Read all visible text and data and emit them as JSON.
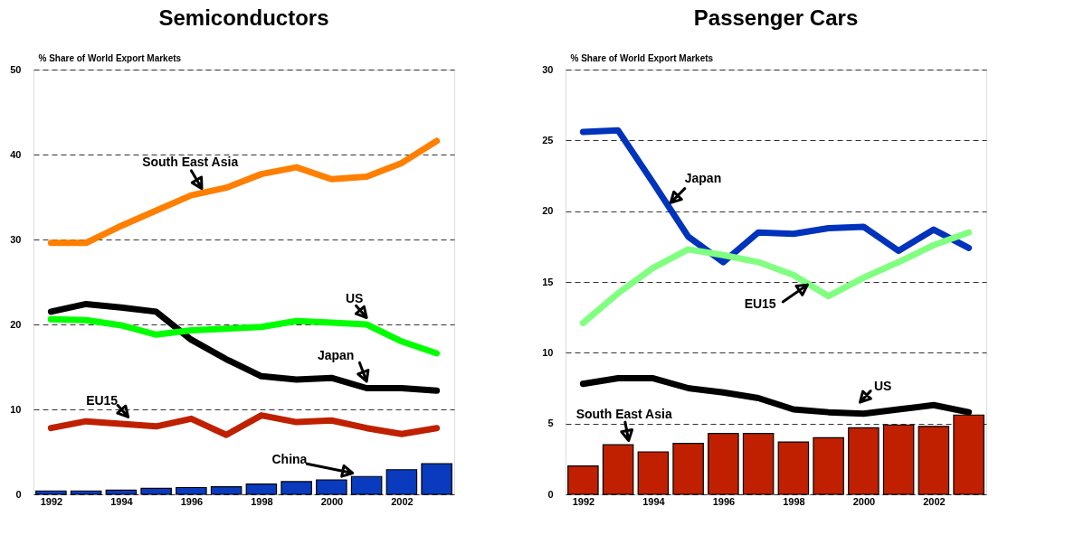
{
  "chart_data": [
    {
      "type": "line",
      "title": "Semiconductors",
      "ylabel": "% Share of World Export Markets",
      "categories": [
        "1992",
        null,
        "1994",
        null,
        "1996",
        null,
        "1998",
        null,
        "2000",
        null,
        "2002",
        null
      ],
      "series": [
        {
          "name": "South East Asia",
          "color": "#ff7f00",
          "values": [
            29.6,
            29.6,
            31.6,
            33.4,
            35.2,
            36.1,
            37.7,
            38.5,
            37.1,
            37.4,
            39.0,
            41.6
          ]
        },
        {
          "name": "Japan",
          "color": "#000000",
          "values": [
            21.5,
            22.4,
            22.0,
            21.5,
            18.2,
            15.9,
            13.9,
            13.5,
            13.7,
            12.5,
            12.5,
            12.2
          ]
        },
        {
          "name": "US",
          "color": "#00ff00",
          "values": [
            20.6,
            20.5,
            19.9,
            18.8,
            19.3,
            19.5,
            19.7,
            20.4,
            20.2,
            20.0,
            18.0,
            16.6
          ]
        },
        {
          "name": "EU15",
          "color": "#bf2000",
          "values": [
            7.8,
            8.6,
            8.3,
            8.0,
            8.9,
            7.0,
            9.3,
            8.5,
            8.7,
            7.8,
            7.1,
            7.8
          ]
        },
        {
          "name": "China",
          "type": "bar",
          "color": "#0a3bbf",
          "values": [
            0.4,
            0.4,
            0.5,
            0.7,
            0.8,
            0.9,
            1.2,
            1.5,
            1.7,
            2.1,
            2.9,
            3.6
          ]
        }
      ],
      "ylim": [
        0,
        50
      ],
      "yticks": [
        0,
        10,
        20,
        30,
        40,
        50
      ],
      "grid": "y",
      "legend": false
    },
    {
      "type": "line",
      "title": "Passenger Cars",
      "ylabel": "% Share of World Export Markets",
      "categories": [
        "1992",
        null,
        "1994",
        null,
        "1996",
        null,
        "1998",
        null,
        "2000",
        null,
        "2002",
        null
      ],
      "series": [
        {
          "name": "South East Asia",
          "type": "bar",
          "color": "#c02000",
          "values": [
            2.0,
            3.5,
            3.0,
            3.6,
            4.3,
            4.3,
            3.7,
            4.0,
            4.7,
            4.9,
            4.8,
            5.6
          ]
        },
        {
          "name": "Japan",
          "color": "#0033bb",
          "values": [
            25.6,
            25.7,
            22.0,
            18.2,
            16.4,
            18.5,
            18.4,
            18.8,
            18.9,
            17.2,
            18.7,
            17.4
          ]
        },
        {
          "name": "EU15",
          "color": "#80ff80",
          "values": [
            12.1,
            14.2,
            16.0,
            17.3,
            16.9,
            16.4,
            15.5,
            14.0,
            15.3,
            16.4,
            17.6,
            18.5
          ]
        },
        {
          "name": "US",
          "color": "#000000",
          "values": [
            7.8,
            8.2,
            8.2,
            7.5,
            7.2,
            6.8,
            6.0,
            5.8,
            5.7,
            6.0,
            6.3,
            5.8
          ]
        }
      ],
      "ylim": [
        0,
        30
      ],
      "yticks": [
        0,
        5,
        10,
        15,
        20,
        25,
        30
      ],
      "grid": "y",
      "legend": false
    }
  ]
}
